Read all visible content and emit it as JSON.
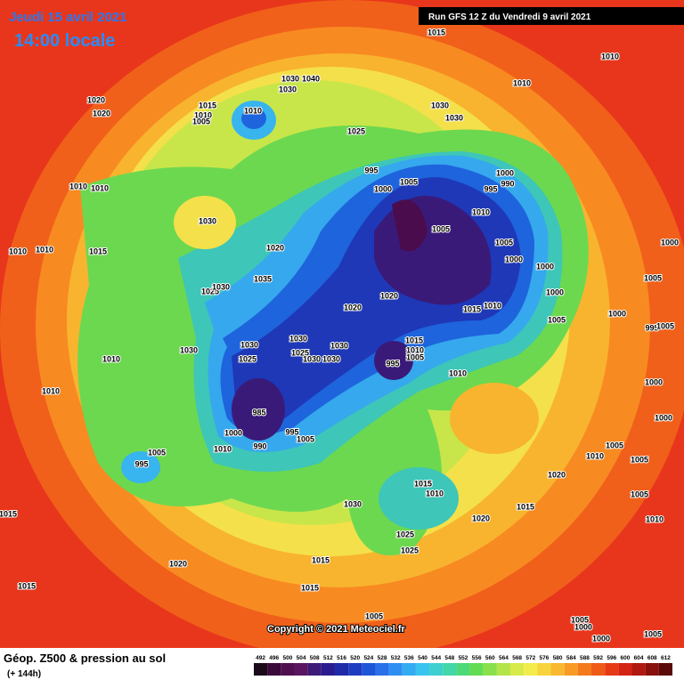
{
  "header": {
    "date": "Jeudi 15 avril 2021",
    "time": "14:00 locale",
    "run": "Run GFS 12 Z du Vendredi 9 avril 2021"
  },
  "copyright": "Copyright © 2021 Meteociel.fr",
  "footer": {
    "title": "Géop. Z500 & pression au sol",
    "subtitle": "(+ 144h)"
  },
  "scale": {
    "labels": [
      492,
      496,
      500,
      504,
      508,
      512,
      516,
      520,
      524,
      528,
      532,
      536,
      540,
      544,
      548,
      552,
      556,
      560,
      564,
      568,
      572,
      576,
      580,
      584,
      588,
      592,
      596,
      600,
      604,
      608,
      612
    ],
    "colors": [
      "#1a0a1a",
      "#3a0a3a",
      "#50104f",
      "#5a1460",
      "#3c1a78",
      "#2a1c90",
      "#1f2aa8",
      "#1f3cc0",
      "#1f55d8",
      "#2a70e8",
      "#2f8ef2",
      "#34acf2",
      "#38c4ee",
      "#3ecfd0",
      "#42d6a8",
      "#4fd878",
      "#64dc52",
      "#8ae04a",
      "#b4e44a",
      "#d8ea4a",
      "#f4ec4c",
      "#f8d43c",
      "#f8b830",
      "#f89a24",
      "#f47a1c",
      "#ee5a18",
      "#e63a16",
      "#d42414",
      "#b01810",
      "#8a100c",
      "#5a0a08"
    ]
  },
  "isobars": [
    "1015",
    "1010",
    "1020",
    "1020",
    "1030",
    "1040",
    "1030",
    "1015",
    "1010",
    "1005",
    "1010",
    "1010",
    "1030",
    "1030",
    "1025",
    "995",
    "1005",
    "1000",
    "1000",
    "995",
    "990",
    "1010",
    "1005",
    "1005",
    "1000",
    "1000",
    "1000",
    "1005",
    "1000",
    "1005",
    "1000",
    "995",
    "1005",
    "1000",
    "1000",
    "1010",
    "1010",
    "1010",
    "1010",
    "1015",
    "1030",
    "1020",
    "1035",
    "1025",
    "1030",
    "1020",
    "1020",
    "1015",
    "1010",
    "1030",
    "1030",
    "1030",
    "1025",
    "1030",
    "1030",
    "1025",
    "1015",
    "1010",
    "1005",
    "995",
    "1010",
    "1030",
    "1010",
    "1010",
    "985",
    "1000",
    "1010",
    "990",
    "995",
    "1005",
    "1005",
    "995",
    "1020",
    "1010",
    "1005",
    "1005",
    "1005",
    "1015",
    "1010",
    "1030",
    "1020",
    "1015",
    "1025",
    "1025",
    "1010",
    "1015",
    "1020",
    "1015",
    "1015",
    "1015",
    "1005",
    "1005",
    "1000",
    "1005",
    "1000"
  ]
}
